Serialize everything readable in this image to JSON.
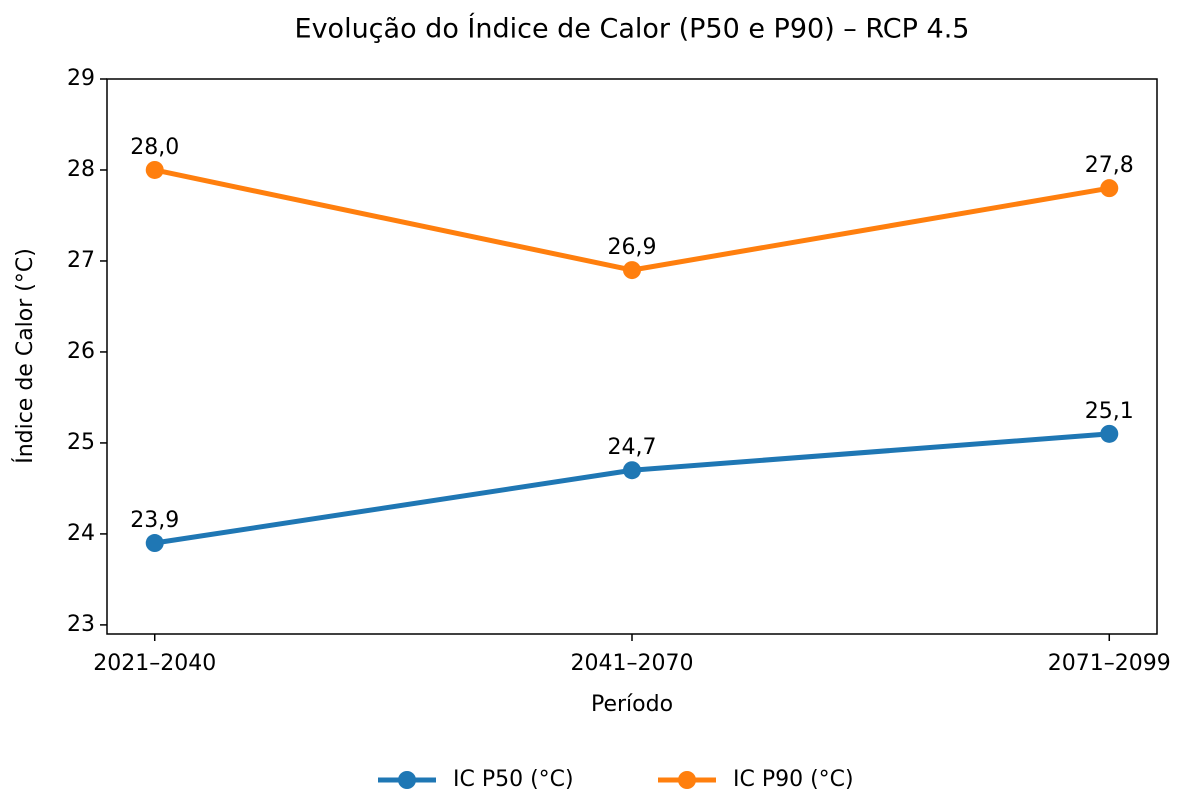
{
  "chart_data": {
    "type": "line",
    "title": "Evolução do Índice de Calor (P50 e P90) – RCP 4.5",
    "x_label": "Período",
    "y_label": "Índice de Calor (°C)",
    "categories": [
      "2021–2040",
      "2041–2070",
      "2071–2099"
    ],
    "series": [
      {
        "name": "IC P50 (°C)",
        "color": "#1f77b4",
        "values": [
          23.9,
          24.7,
          25.1
        ],
        "value_labels": [
          "23,9",
          "24,7",
          "25,1"
        ]
      },
      {
        "name": "IC P90 (°C)",
        "color": "#ff7f0e",
        "values": [
          28.0,
          26.9,
          27.8
        ],
        "value_labels": [
          "28,0",
          "26,9",
          "27,8"
        ]
      }
    ],
    "ylim": [
      22.9,
      29
    ],
    "yticks": [
      23,
      24,
      25,
      26,
      27,
      28,
      29
    ],
    "legend": "bottom"
  }
}
